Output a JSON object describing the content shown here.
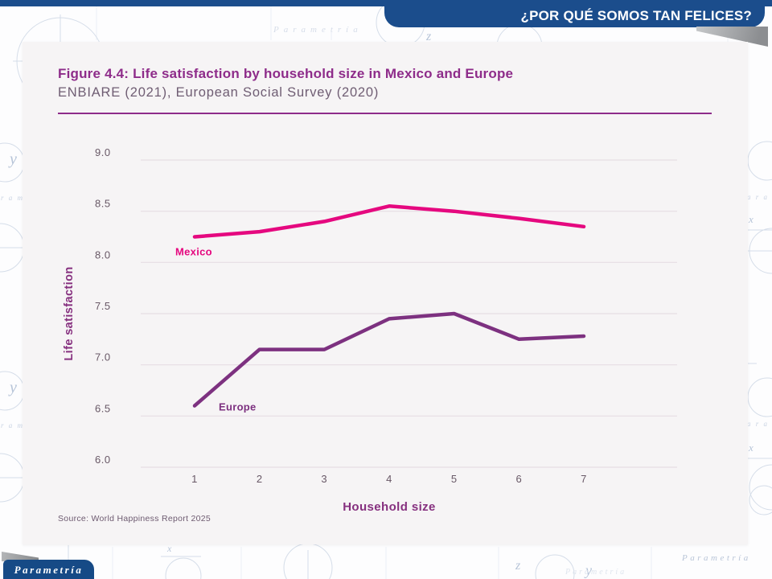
{
  "header": {
    "title": "¿POR QUÉ SOMOS TAN FELICES?"
  },
  "figure": {
    "title": "Figure 4.4: Life satisfaction by household size in Mexico and Europe",
    "subtitle": "ENBIARE (2021), European Social Survey (2020)",
    "source": "Source: World Happiness Report 2025"
  },
  "logo": {
    "text": "Parametría"
  },
  "background": {
    "watermark": "Parametría",
    "fragment_right": "a r a",
    "fragment_left": "r a m",
    "letter_x": "x",
    "letter_y": "y",
    "letter_z": "z"
  },
  "colors": {
    "header_blue": "#1b4d8c",
    "logo_blue": "#164a86",
    "card_bg": "#f6f4f5",
    "title_purple": "#8e2c8a",
    "subtitle_gray_purple": "#6f5d73",
    "mexico_pink": "#e5087f",
    "europe_purple": "#7d3180",
    "gridline": "#e6dee3",
    "tick_label": "#685866",
    "axis_label_purple": "#86307f"
  },
  "chart_data": {
    "type": "line",
    "title": "Figure 4.4: Life satisfaction by household size in Mexico and Europe",
    "subtitle": "ENBIARE (2021), European Social Survey (2020)",
    "x": [
      1,
      2,
      3,
      4,
      5,
      6,
      7
    ],
    "xlabel": "Household size",
    "ylabel": "Life satisfaction",
    "ylim": [
      6.0,
      9.0
    ],
    "ytick_step": 0.5,
    "grid": true,
    "legend": "inline-labels",
    "series": [
      {
        "name": "Mexico",
        "color": "#e5087f",
        "values": [
          8.25,
          8.3,
          8.4,
          8.55,
          8.5,
          8.43,
          8.35
        ],
        "label_dx": -24,
        "label_dy": 23
      },
      {
        "name": "Europe",
        "color": "#7d3180",
        "values": [
          6.6,
          7.15,
          7.15,
          7.45,
          7.5,
          7.25,
          7.28
        ],
        "label_dx": 30,
        "label_dy": 6
      }
    ],
    "source": "Source: World Happiness Report 2025"
  }
}
